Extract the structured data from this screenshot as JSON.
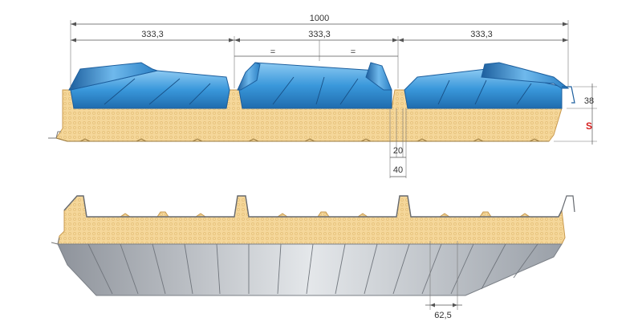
{
  "dimensions": {
    "total_width": "1000",
    "rib_spacing_1": "333,3",
    "rib_spacing_2": "333,3",
    "rib_spacing_3": "333,3",
    "equal_mark_1": "=",
    "equal_mark_2": "=",
    "rib_height": "38",
    "thickness_symbol": "S",
    "rib_top_width": "20",
    "rib_base_width": "40",
    "liner_pitch": "62,5"
  },
  "colors": {
    "steel_face": "#2f8fd6",
    "steel_light": "#7fc3f0",
    "steel_dark": "#1d5f9e",
    "foam_core": "#f5d79a",
    "foam_edge": "#c99a4e",
    "liner": "#c8ccd2",
    "liner_dark": "#8e939b",
    "dimension_accent": "#d62020"
  }
}
